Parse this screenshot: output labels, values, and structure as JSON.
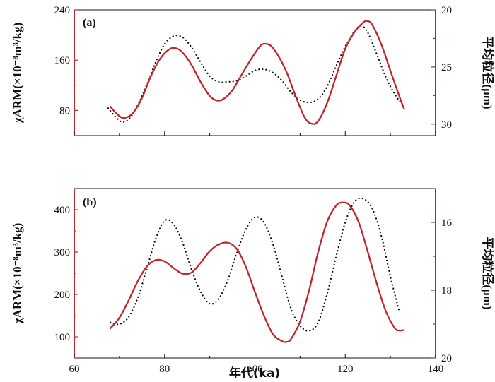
{
  "chart_data": [
    {
      "type": "line",
      "panel": "(a)",
      "xlabel": "年代(ka)",
      "xlim": [
        60,
        140
      ],
      "ylabel_left": "χARM(×10⁻⁸m³/kg)",
      "ylim_left": [
        40,
        240
      ],
      "yticks_left": [
        80,
        160,
        240
      ],
      "ylabel_right": "平均粒径(μm)",
      "ylim_right": [
        31,
        20
      ],
      "yticks_right": [
        20,
        25,
        30
      ],
      "series": [
        {
          "name": "χARM",
          "axis": "left",
          "color": "#c0272d",
          "style": "solid",
          "x": [
            68.0,
            69.5,
            71.0,
            73.0,
            75.0,
            77.0,
            79.0,
            81.0,
            82.5,
            84.0,
            86.0,
            88.0,
            90.0,
            91.5,
            93.0,
            95.0,
            97.0,
            99.0,
            101.0,
            102.0,
            103.5,
            105.0,
            107.0,
            109.0,
            111.0,
            112.5,
            114.0,
            116.0,
            118.0,
            120.0,
            122.0,
            124.0,
            125.0,
            126.0,
            128.0,
            130.0,
            132.0,
            133.0
          ],
          "y": [
            86,
            74,
            68,
            76,
            100,
            135,
            162,
            177,
            179,
            172,
            152,
            125,
            103,
            96,
            98,
            112,
            136,
            160,
            181,
            186,
            183,
            169,
            141,
            103,
            69,
            59,
            63,
            92,
            135,
            178,
            204,
            220,
            222,
            216,
            185,
            143,
            102,
            83
          ]
        },
        {
          "name": "平均粒径",
          "axis": "right",
          "color": "#111111",
          "style": "dotted",
          "x": [
            67.5,
            69.0,
            70.5,
            72.0,
            74.0,
            76.0,
            78.0,
            80.0,
            82.0,
            84.0,
            86.0,
            88.0,
            90.0,
            92.0,
            94.0,
            96.0,
            98.0,
            100.0,
            102.0,
            104.0,
            106.0,
            108.0,
            110.0,
            112.0,
            114.0,
            116.0,
            118.0,
            120.0,
            122.0,
            123.5,
            125.0,
            127.0,
            129.0,
            131.0,
            133.0
          ],
          "y": [
            28.6,
            29.3,
            29.8,
            29.6,
            28.4,
            26.6,
            24.6,
            23.0,
            22.3,
            22.4,
            23.3,
            24.6,
            25.8,
            26.3,
            26.3,
            26.2,
            25.8,
            25.3,
            25.2,
            25.5,
            26.2,
            27.2,
            27.9,
            28.1,
            27.8,
            26.7,
            24.9,
            23.2,
            21.9,
            21.4,
            22.0,
            23.9,
            25.9,
            27.4,
            28.5
          ]
        }
      ]
    },
    {
      "type": "line",
      "panel": "(b)",
      "xlabel": "年代(ka)",
      "xlim": [
        60,
        140
      ],
      "xticks": [
        60,
        80,
        100,
        120,
        140
      ],
      "ylabel_left": "χARM(×10⁻⁸m³/kg)",
      "ylim_left": [
        50,
        450
      ],
      "yticks_left": [
        100,
        200,
        300,
        400
      ],
      "ylabel_right": "平均粒径(μm)",
      "ylim_right": [
        20,
        15
      ],
      "yticks_right": [
        16,
        18,
        20
      ],
      "series": [
        {
          "name": "χARM",
          "axis": "left",
          "color": "#c0272d",
          "style": "solid",
          "x": [
            68.0,
            70.0,
            72.0,
            74.0,
            76.0,
            78.0,
            80.0,
            82.0,
            84.0,
            86.0,
            88.0,
            90.0,
            92.0,
            94.0,
            96.0,
            98.0,
            100.0,
            102.0,
            104.0,
            106.0,
            107.0,
            108.0,
            110.0,
            112.0,
            114.0,
            116.0,
            118.0,
            119.5,
            121.0,
            123.0,
            125.0,
            127.0,
            129.0,
            131.0,
            132.0,
            133.0
          ],
          "y": [
            120,
            145,
            185,
            230,
            265,
            281,
            278,
            262,
            249,
            252,
            275,
            302,
            318,
            322,
            307,
            265,
            206,
            150,
            106,
            90,
            88,
            95,
            136,
            210,
            300,
            372,
            410,
            417,
            410,
            370,
            300,
            225,
            160,
            120,
            115,
            116
          ]
        },
        {
          "name": "平均粒径",
          "axis": "right",
          "color": "#111111",
          "style": "dotted",
          "x": [
            68.0,
            70.0,
            72.0,
            74.0,
            76.0,
            78.0,
            80.0,
            82.0,
            84.0,
            86.0,
            88.0,
            90.0,
            92.0,
            94.0,
            96.0,
            98.0,
            100.0,
            102.0,
            104.0,
            106.0,
            108.0,
            110.0,
            112.0,
            114.0,
            116.0,
            118.0,
            120.0,
            122.0,
            124.0,
            126.0,
            128.0,
            130.0,
            132.0
          ],
          "y": [
            18.95,
            19.0,
            18.8,
            18.25,
            17.4,
            16.5,
            15.95,
            16.05,
            16.6,
            17.4,
            18.05,
            18.4,
            18.25,
            17.7,
            16.9,
            16.2,
            15.85,
            16.0,
            16.65,
            17.6,
            18.55,
            19.05,
            19.2,
            18.95,
            18.1,
            17.0,
            16.0,
            15.4,
            15.3,
            15.6,
            16.4,
            17.6,
            18.65
          ]
        }
      ]
    }
  ]
}
